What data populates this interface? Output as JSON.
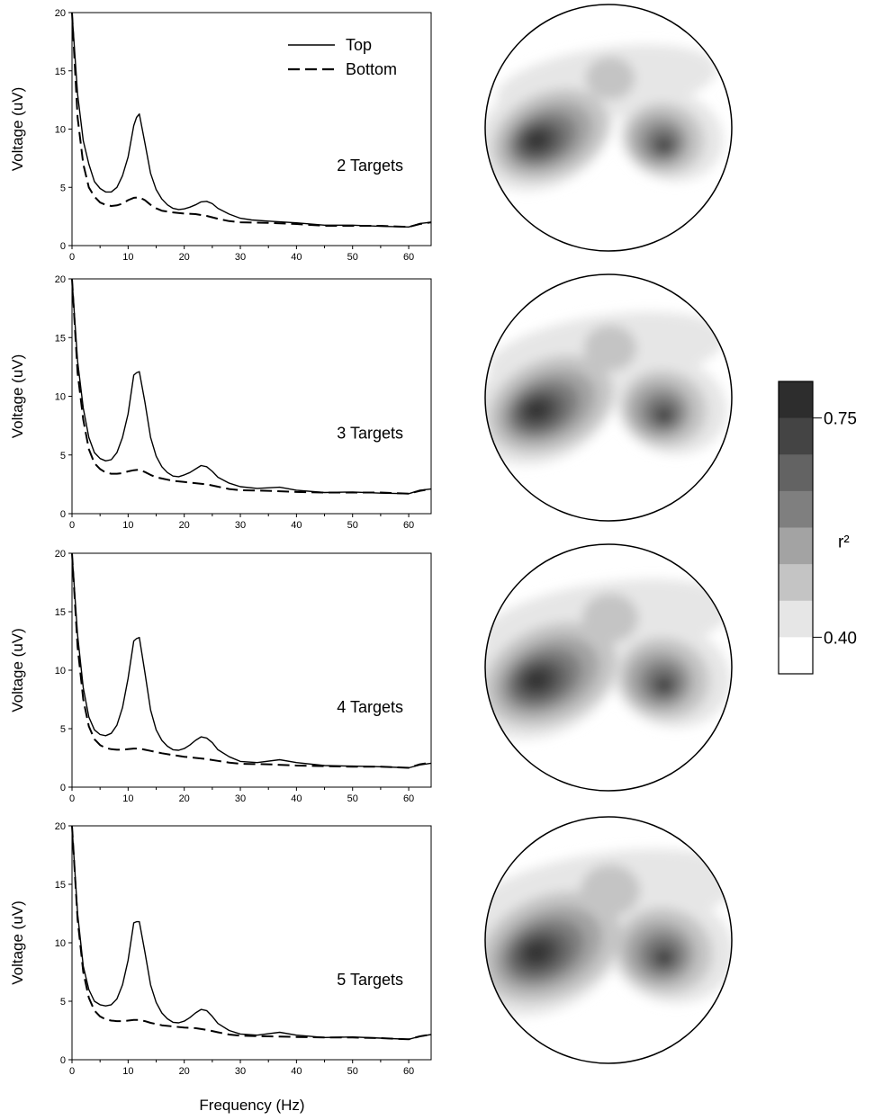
{
  "colorbar": {
    "high_label": "0.75",
    "low_label": "0.40",
    "title": "r²",
    "shades": [
      "#2d2d2d",
      "#444444",
      "#636363",
      "#7f7f7f",
      "#a3a3a3",
      "#c4c4c4",
      "#e6e6e6",
      "#ffffff"
    ]
  },
  "chart_data": [
    {
      "type": "line",
      "title": "2 Targets",
      "ylabel": "Voltage (uV)",
      "xlabel": "",
      "xlim": [
        0,
        64
      ],
      "ylim": [
        0,
        20
      ],
      "xticks": [
        0,
        10,
        20,
        30,
        40,
        50,
        60
      ],
      "yticks": [
        0,
        5,
        10,
        15,
        20
      ],
      "legend": "top-right",
      "series": [
        {
          "name": "Top",
          "style": "solid",
          "x": [
            0,
            1,
            2,
            3,
            4,
            5,
            6,
            7,
            8,
            9,
            10,
            11,
            11.5,
            12,
            13,
            14,
            15,
            16,
            17,
            18,
            19,
            20,
            21,
            22,
            23,
            24,
            25,
            26,
            28,
            30,
            32,
            35,
            40,
            45,
            50,
            55,
            60,
            62,
            64
          ],
          "y": [
            20,
            13,
            9,
            7,
            5.5,
            4.9,
            4.6,
            4.6,
            5.0,
            6.0,
            7.6,
            10.3,
            11.0,
            11.3,
            8.8,
            6.2,
            4.8,
            4.0,
            3.5,
            3.2,
            3.1,
            3.15,
            3.3,
            3.5,
            3.75,
            3.8,
            3.6,
            3.2,
            2.7,
            2.35,
            2.2,
            2.1,
            1.95,
            1.75,
            1.75,
            1.65,
            1.6,
            1.9,
            2.0
          ]
        },
        {
          "name": "Bottom",
          "style": "dashed",
          "x": [
            0,
            1,
            2,
            3,
            4,
            5,
            6,
            7,
            8,
            9,
            10,
            11,
            12,
            13,
            14,
            15,
            16,
            18,
            20,
            22,
            24,
            26,
            28,
            30,
            35,
            40,
            45,
            50,
            55,
            60,
            62,
            64
          ],
          "y": [
            20,
            11,
            7,
            5,
            4.2,
            3.7,
            3.5,
            3.4,
            3.45,
            3.6,
            3.9,
            4.1,
            4.15,
            3.9,
            3.5,
            3.2,
            3.0,
            2.85,
            2.75,
            2.7,
            2.55,
            2.3,
            2.1,
            2.0,
            1.95,
            1.85,
            1.7,
            1.7,
            1.7,
            1.6,
            1.85,
            2.0
          ]
        }
      ]
    },
    {
      "type": "line",
      "title": "3 Targets",
      "ylabel": "Voltage (uV)",
      "xlabel": "",
      "xlim": [
        0,
        64
      ],
      "ylim": [
        0,
        20
      ],
      "xticks": [
        0,
        10,
        20,
        30,
        40,
        50,
        60
      ],
      "yticks": [
        0,
        5,
        10,
        15,
        20
      ],
      "series": [
        {
          "name": "Top",
          "style": "solid",
          "x": [
            0,
            1,
            2,
            3,
            4,
            5,
            6,
            7,
            8,
            9,
            10,
            11,
            11.5,
            12,
            13,
            14,
            15,
            16,
            17,
            18,
            19,
            20,
            21,
            22,
            23,
            24,
            25,
            26,
            28,
            30,
            33,
            37,
            40,
            45,
            50,
            55,
            60,
            62,
            64
          ],
          "y": [
            20,
            13,
            9,
            6.5,
            5.2,
            4.7,
            4.5,
            4.6,
            5.2,
            6.5,
            8.5,
            11.8,
            12.0,
            12.1,
            9.5,
            6.5,
            4.9,
            4.0,
            3.5,
            3.2,
            3.15,
            3.3,
            3.5,
            3.8,
            4.1,
            4.0,
            3.6,
            3.1,
            2.6,
            2.3,
            2.15,
            2.25,
            2.0,
            1.8,
            1.85,
            1.75,
            1.7,
            2.0,
            2.1
          ]
        },
        {
          "name": "Bottom",
          "style": "dashed",
          "x": [
            0,
            1,
            2,
            3,
            4,
            5,
            6,
            7,
            8,
            9,
            10,
            11,
            12,
            13,
            14,
            15,
            16,
            18,
            20,
            22,
            24,
            26,
            28,
            30,
            35,
            40,
            45,
            50,
            55,
            60,
            62,
            64
          ],
          "y": [
            20,
            12,
            8,
            5.5,
            4.3,
            3.8,
            3.5,
            3.4,
            3.4,
            3.45,
            3.6,
            3.7,
            3.75,
            3.55,
            3.3,
            3.1,
            3.0,
            2.8,
            2.7,
            2.6,
            2.5,
            2.3,
            2.1,
            2.0,
            1.95,
            1.85,
            1.8,
            1.8,
            1.8,
            1.7,
            1.95,
            2.1
          ]
        }
      ]
    },
    {
      "type": "line",
      "title": "4 Targets",
      "ylabel": "Voltage (uV)",
      "xlabel": "",
      "xlim": [
        0,
        64
      ],
      "ylim": [
        0,
        20
      ],
      "xticks": [
        0,
        10,
        20,
        30,
        40,
        50,
        60
      ],
      "yticks": [
        0,
        5,
        10,
        15,
        20
      ],
      "series": [
        {
          "name": "Top",
          "style": "solid",
          "x": [
            0,
            1,
            2,
            3,
            4,
            5,
            6,
            7,
            8,
            9,
            10,
            11,
            11.5,
            12,
            13,
            14,
            15,
            16,
            17,
            18,
            19,
            20,
            21,
            22,
            23,
            24,
            25,
            26,
            28,
            30,
            33,
            37,
            40,
            45,
            50,
            55,
            60,
            62,
            64
          ],
          "y": [
            20,
            13,
            8.5,
            6,
            4.9,
            4.5,
            4.4,
            4.6,
            5.3,
            6.8,
            9.3,
            12.5,
            12.7,
            12.8,
            9.8,
            6.6,
            4.9,
            4.0,
            3.5,
            3.2,
            3.15,
            3.3,
            3.6,
            4.0,
            4.3,
            4.2,
            3.8,
            3.2,
            2.6,
            2.2,
            2.1,
            2.35,
            2.1,
            1.85,
            1.8,
            1.75,
            1.65,
            1.9,
            2.05
          ]
        },
        {
          "name": "Bottom",
          "style": "dashed",
          "x": [
            0,
            1,
            2,
            3,
            4,
            5,
            6,
            7,
            8,
            9,
            10,
            11,
            12,
            13,
            14,
            15,
            16,
            18,
            20,
            22,
            24,
            26,
            28,
            30,
            35,
            40,
            45,
            50,
            55,
            60,
            62,
            64
          ],
          "y": [
            20,
            12,
            7.5,
            5.2,
            4.1,
            3.6,
            3.35,
            3.25,
            3.2,
            3.2,
            3.25,
            3.3,
            3.3,
            3.2,
            3.1,
            3.0,
            2.9,
            2.75,
            2.6,
            2.5,
            2.4,
            2.25,
            2.1,
            2.0,
            1.95,
            1.85,
            1.8,
            1.75,
            1.75,
            1.65,
            1.95,
            2.1
          ]
        }
      ]
    },
    {
      "type": "line",
      "title": "5 Targets",
      "ylabel": "Voltage (uV)",
      "xlabel": "Frequency (Hz)",
      "xlim": [
        0,
        64
      ],
      "ylim": [
        0,
        20
      ],
      "xticks": [
        0,
        10,
        20,
        30,
        40,
        50,
        60
      ],
      "yticks": [
        0,
        5,
        10,
        15,
        20
      ],
      "series": [
        {
          "name": "Top",
          "style": "solid",
          "x": [
            0,
            1,
            2,
            3,
            4,
            5,
            6,
            7,
            8,
            9,
            10,
            11,
            11.5,
            12,
            13,
            14,
            15,
            16,
            17,
            18,
            19,
            20,
            21,
            22,
            23,
            24,
            25,
            26,
            28,
            30,
            33,
            37,
            40,
            45,
            50,
            55,
            60,
            62,
            64
          ],
          "y": [
            20,
            12.5,
            8,
            6,
            5.0,
            4.7,
            4.6,
            4.7,
            5.2,
            6.4,
            8.5,
            11.7,
            11.8,
            11.8,
            9.2,
            6.4,
            4.9,
            4.0,
            3.5,
            3.2,
            3.15,
            3.3,
            3.6,
            4.0,
            4.3,
            4.2,
            3.7,
            3.1,
            2.5,
            2.2,
            2.1,
            2.35,
            2.1,
            1.9,
            1.95,
            1.85,
            1.75,
            2.0,
            2.15
          ]
        },
        {
          "name": "Bottom",
          "style": "dashed",
          "x": [
            0,
            1,
            2,
            3,
            4,
            5,
            6,
            7,
            8,
            9,
            10,
            11,
            12,
            13,
            14,
            15,
            16,
            18,
            20,
            22,
            24,
            26,
            28,
            30,
            35,
            40,
            45,
            50,
            55,
            60,
            62,
            64
          ],
          "y": [
            20,
            12,
            7.5,
            5.3,
            4.2,
            3.7,
            3.45,
            3.35,
            3.3,
            3.3,
            3.35,
            3.4,
            3.4,
            3.3,
            3.15,
            3.05,
            2.95,
            2.85,
            2.75,
            2.7,
            2.55,
            2.35,
            2.15,
            2.05,
            2.0,
            1.95,
            1.9,
            1.9,
            1.85,
            1.75,
            2.0,
            2.15
          ]
        }
      ]
    }
  ]
}
